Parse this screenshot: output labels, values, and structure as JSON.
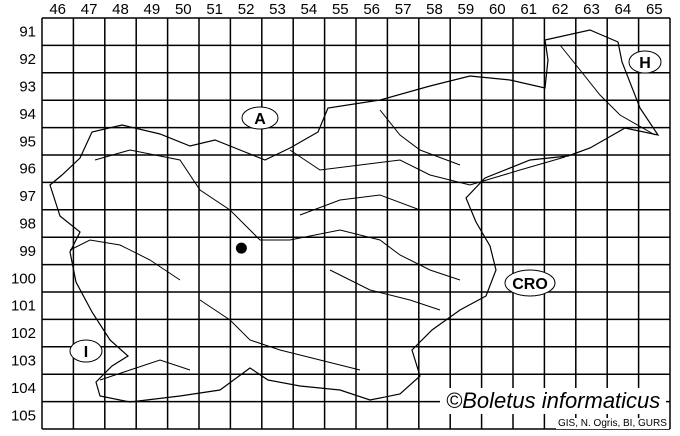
{
  "columns": [
    "46",
    "47",
    "48",
    "49",
    "50",
    "51",
    "52",
    "53",
    "54",
    "55",
    "56",
    "57",
    "58",
    "59",
    "60",
    "61",
    "62",
    "63",
    "64",
    "65"
  ],
  "rows": [
    "91",
    "92",
    "93",
    "94",
    "95",
    "96",
    "97",
    "98",
    "99",
    "100",
    "101",
    "102",
    "103",
    "104",
    "105"
  ],
  "country_labels": {
    "austria": "A",
    "hungary": "H",
    "croatia": "CRO",
    "italy": "I"
  },
  "records": [
    {
      "column": "52",
      "row": "99"
    }
  ],
  "copyright": "©Boletus informaticus",
  "credit": "GIS, N. Ogris, BI, GURS"
}
